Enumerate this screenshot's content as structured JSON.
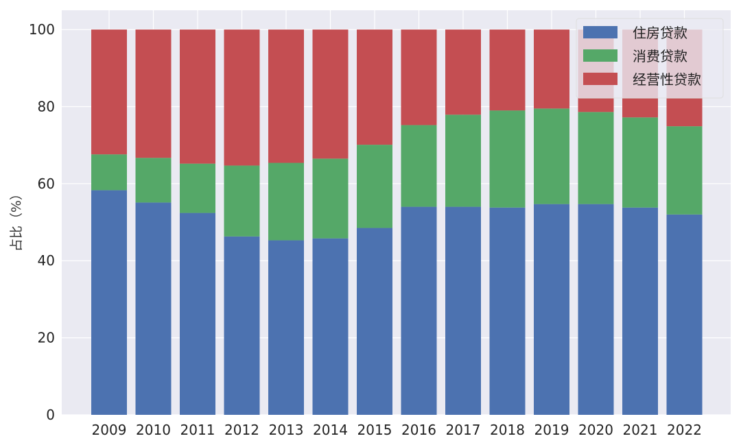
{
  "chart_data": {
    "type": "bar",
    "stacked": true,
    "title": "",
    "xlabel": "",
    "ylabel": "占比（%）",
    "ylim": [
      0,
      105
    ],
    "yticks": [
      0,
      20,
      40,
      60,
      80,
      100
    ],
    "grid": true,
    "legend_position": "top-right",
    "categories": [
      "2009",
      "2010",
      "2011",
      "2012",
      "2013",
      "2014",
      "2015",
      "2016",
      "2017",
      "2018",
      "2019",
      "2020",
      "2021",
      "2022"
    ],
    "series": [
      {
        "name": "住房贷款",
        "color": "#4c72b0",
        "values": [
          58.3,
          55.1,
          52.4,
          46.3,
          45.3,
          45.8,
          48.5,
          54.0,
          54.0,
          53.8,
          54.7,
          54.7,
          53.8,
          52.0
        ]
      },
      {
        "name": "消费贷款",
        "color": "#55a868",
        "values": [
          9.3,
          11.6,
          12.8,
          18.4,
          20.1,
          20.7,
          21.6,
          21.2,
          23.9,
          25.2,
          24.8,
          23.9,
          23.4,
          22.9
        ]
      },
      {
        "name": "经营性贷款",
        "color": "#c44e52",
        "values": [
          32.4,
          33.3,
          34.8,
          35.3,
          34.6,
          33.5,
          29.9,
          24.8,
          22.1,
          21.0,
          20.5,
          21.4,
          22.8,
          25.1
        ]
      }
    ]
  }
}
